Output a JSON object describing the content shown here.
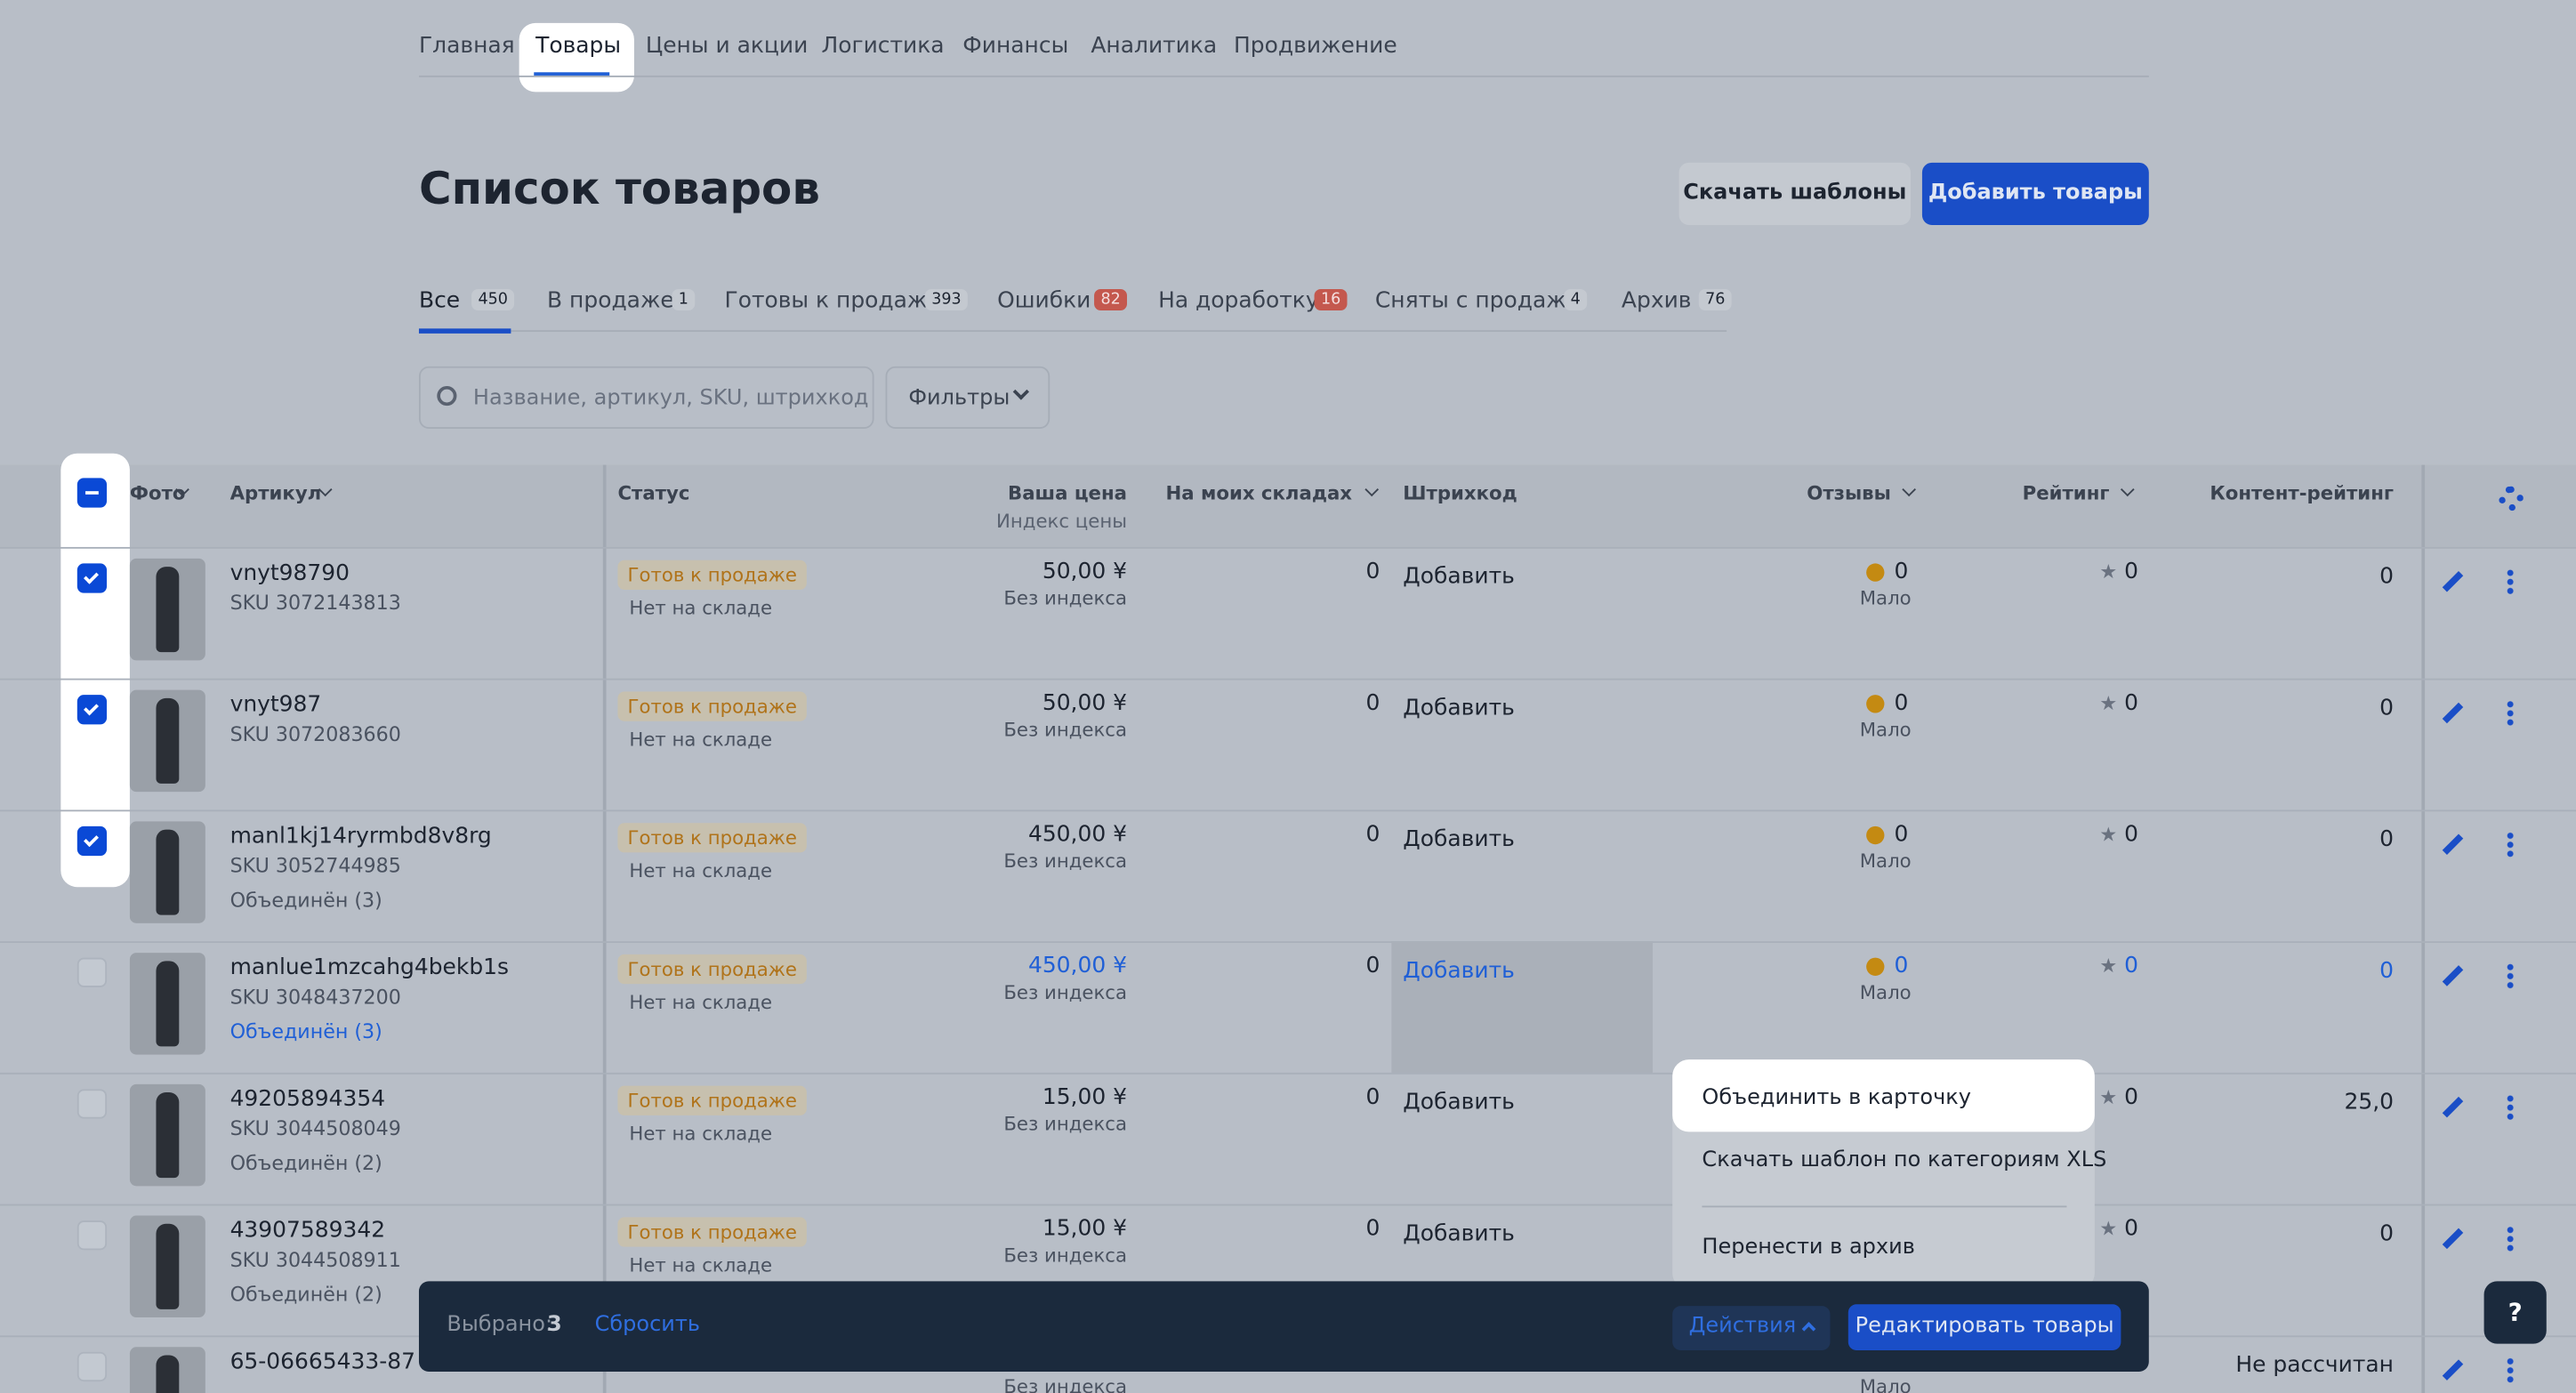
{
  "nav": [
    "Главная",
    "Товары",
    "Цены и акции",
    "Логистика",
    "Финансы",
    "Аналитика",
    "Продвижение"
  ],
  "page_title": "Список товаров",
  "buttons": {
    "download_templates": "Скачать шаблоны",
    "add_products": "Добавить товары"
  },
  "status_tabs": [
    {
      "label": "Все",
      "count": "450"
    },
    {
      "label": "В продаже",
      "count": "1"
    },
    {
      "label": "Готовы к продаже",
      "count": "393"
    },
    {
      "label": "Ошибки",
      "count": "82"
    },
    {
      "label": "На доработку",
      "count": "16"
    },
    {
      "label": "Сняты с продажи",
      "count": "4"
    },
    {
      "label": "Архив",
      "count": "76"
    }
  ],
  "search_placeholder": "Название, артикул, SKU, штрихкод",
  "filters": "Фильтры",
  "table": {
    "headers": {
      "photo": "Фото",
      "article": "Артикул",
      "status": "Статус",
      "price": "Ваша цена",
      "price_sub": "Индекс цены",
      "stock": "На моих складах",
      "barcode": "Штрихкод",
      "reviews": "Отзывы",
      "rating": "Рейтинг",
      "content_rating": "Контент-рейтинг"
    },
    "rows": [
      {
        "checked": true,
        "article": "vnyt98790",
        "sku": "SKU 3072143813",
        "status": "Готов к продаже",
        "stock_note": "Нет на складе",
        "price": "50,00 ¥",
        "price_index": "Без индекса",
        "stock": "0",
        "barcode": "Добавить",
        "reviews": "0",
        "reviews_note": "Мало",
        "rating": "0",
        "content_rating": "0"
      },
      {
        "checked": true,
        "article": "vnyt987",
        "sku": "SKU 3072083660",
        "status": "Готов к продаже",
        "stock_note": "Нет на складе",
        "price": "50,00 ¥",
        "price_index": "Без индекса",
        "stock": "0",
        "barcode": "Добавить",
        "reviews": "0",
        "reviews_note": "Мало",
        "rating": "0",
        "content_rating": "0"
      },
      {
        "checked": true,
        "article": "manl1kj14ryrmbd8v8rg",
        "sku": "SKU 3052744985",
        "merged": "Объединён (3)",
        "status": "Готов к продаже",
        "stock_note": "Нет на складе",
        "price": "450,00 ¥",
        "price_index": "Без индекса",
        "stock": "0",
        "barcode": "Добавить",
        "reviews": "0",
        "reviews_note": "Мало",
        "rating": "0",
        "content_rating": "0"
      },
      {
        "checked": false,
        "hover": true,
        "article": "manlue1mzcahg4bekb1s",
        "sku": "SKU 3048437200",
        "merged": "Объединён (3)",
        "status": "Готов к продаже",
        "stock_note": "Нет на складе",
        "price": "450,00 ¥",
        "price_index": "Без индекса",
        "stock": "0",
        "barcode": "Добавить",
        "reviews": "0",
        "reviews_note": "Мало",
        "rating": "0",
        "content_rating": "0"
      },
      {
        "checked": false,
        "article": "49205894354",
        "sku": "SKU 3044508049",
        "merged": "Объединён (2)",
        "status": "Готов к продаже",
        "stock_note": "Нет на складе",
        "price": "15,00 ¥",
        "price_index": "Без индекса",
        "stock": "0",
        "barcode": "Добавить",
        "rating": "0",
        "content_rating": "25,0"
      },
      {
        "checked": false,
        "article": "43907589342",
        "sku": "SKU 3044508911",
        "merged": "Объединён (2)",
        "status": "Готов к продаже",
        "stock_note": "Нет на складе",
        "price": "15,00 ¥",
        "price_index": "Без индекса",
        "stock": "0",
        "barcode": "Добавить",
        "rating": "0",
        "content_rating": "0"
      },
      {
        "checked": false,
        "article": "65-06665433-87",
        "price_index": "Без индекса",
        "reviews_note": "Мало",
        "content_rating": "Не рассчитан"
      }
    ]
  },
  "menu": [
    "Объединить в карточку",
    "Скачать шаблон по категориям XLS",
    "Перенести в архив"
  ],
  "bottom_bar": {
    "selected_label": "Выбрано:",
    "selected_count": "3",
    "reset": "Сбросить",
    "actions": "Действия",
    "edit": "Редактировать товары"
  },
  "help": "?"
}
